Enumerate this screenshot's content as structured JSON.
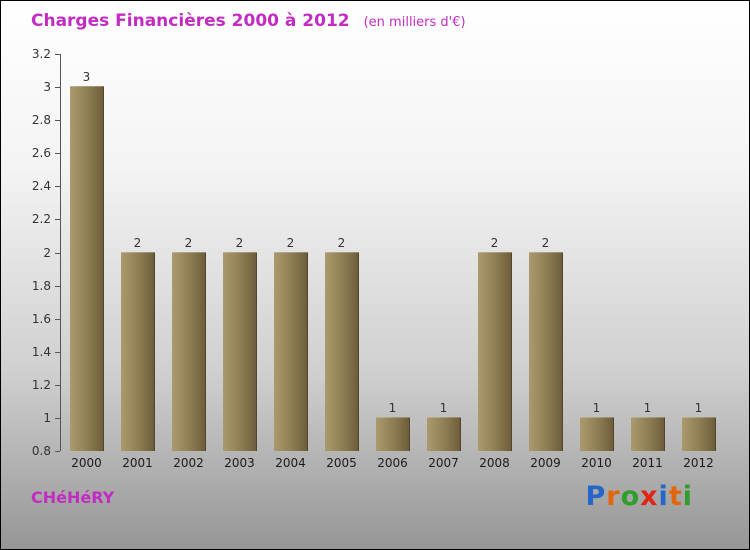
{
  "title": "Charges Financières 2000 à 2012",
  "subtitle": "(en milliers d'€)",
  "footer": {
    "company": "CHéHéRY",
    "logo": {
      "name": "Proxiti",
      "letters": [
        {
          "char": "P",
          "color": "#2566c8"
        },
        {
          "char": "r",
          "color": "#e4660c"
        },
        {
          "char": "o",
          "color": "#2f9e2a"
        },
        {
          "char": "x",
          "color": "#e02517"
        },
        {
          "char": "i",
          "color": "#2566c8"
        },
        {
          "char": "t",
          "color": "#e4660c"
        },
        {
          "char": "i",
          "color": "#2f9e2a"
        }
      ]
    }
  },
  "colors": {
    "title": "#c32cc3",
    "bar_light": "#ab9a6d",
    "bar_dark": "#6b5c3a",
    "axis": "#555555",
    "text": "#333333"
  },
  "chart_data": {
    "type": "bar",
    "title": "Charges Financières 2000 à 2012",
    "subtitle": "(en milliers d'€)",
    "categories": [
      "2000",
      "2001",
      "2002",
      "2003",
      "2004",
      "2005",
      "2006",
      "2007",
      "2008",
      "2009",
      "2010",
      "2011",
      "2012"
    ],
    "values": [
      3,
      2,
      2,
      2,
      2,
      2,
      1,
      1,
      2,
      2,
      1,
      1,
      1
    ],
    "ylim": [
      0.8,
      3.2
    ],
    "yticks": [
      0.8,
      1,
      1.2,
      1.4,
      1.6,
      1.8,
      2,
      2.2,
      2.4,
      2.6,
      2.8,
      3,
      3.2
    ],
    "xlabel": "",
    "ylabel": "",
    "grid": false,
    "legend": false
  }
}
